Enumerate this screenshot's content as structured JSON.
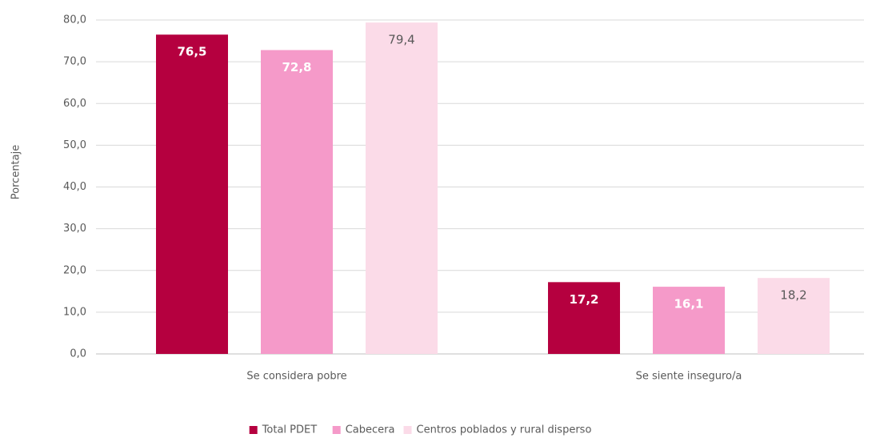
{
  "chart_data": {
    "type": "bar",
    "y_label": "Porcentaje",
    "categories": [
      "Se considera pobre",
      "Se siente inseguro/a"
    ],
    "series": [
      {
        "name": "Total PDET",
        "color": "#b5003f",
        "values": [
          76.5,
          17.2
        ],
        "value_labels": [
          "76,5",
          "17,2"
        ]
      },
      {
        "name": "Cabecera",
        "color": "#f59ac9",
        "values": [
          72.8,
          16.1
        ],
        "value_labels": [
          "72,8",
          "16,1"
        ]
      },
      {
        "name": "Centros poblados y rural disperso",
        "color": "#fbdbe8",
        "values": [
          79.4,
          18.2
        ],
        "value_labels": [
          "79,4",
          "18,2"
        ]
      }
    ],
    "ylim": [
      0,
      80
    ],
    "yticks": [
      {
        "value": 0,
        "label": "0,0"
      },
      {
        "value": 10,
        "label": "10,0"
      },
      {
        "value": 20,
        "label": "20,0"
      },
      {
        "value": 30,
        "label": "30,0"
      },
      {
        "value": 40,
        "label": "40,0"
      },
      {
        "value": 50,
        "label": "50,0"
      },
      {
        "value": 60,
        "label": "60,0"
      },
      {
        "value": 70,
        "label": "70,0"
      },
      {
        "value": 80,
        "label": "80,0"
      }
    ],
    "grid": true,
    "legend": "bottom"
  }
}
